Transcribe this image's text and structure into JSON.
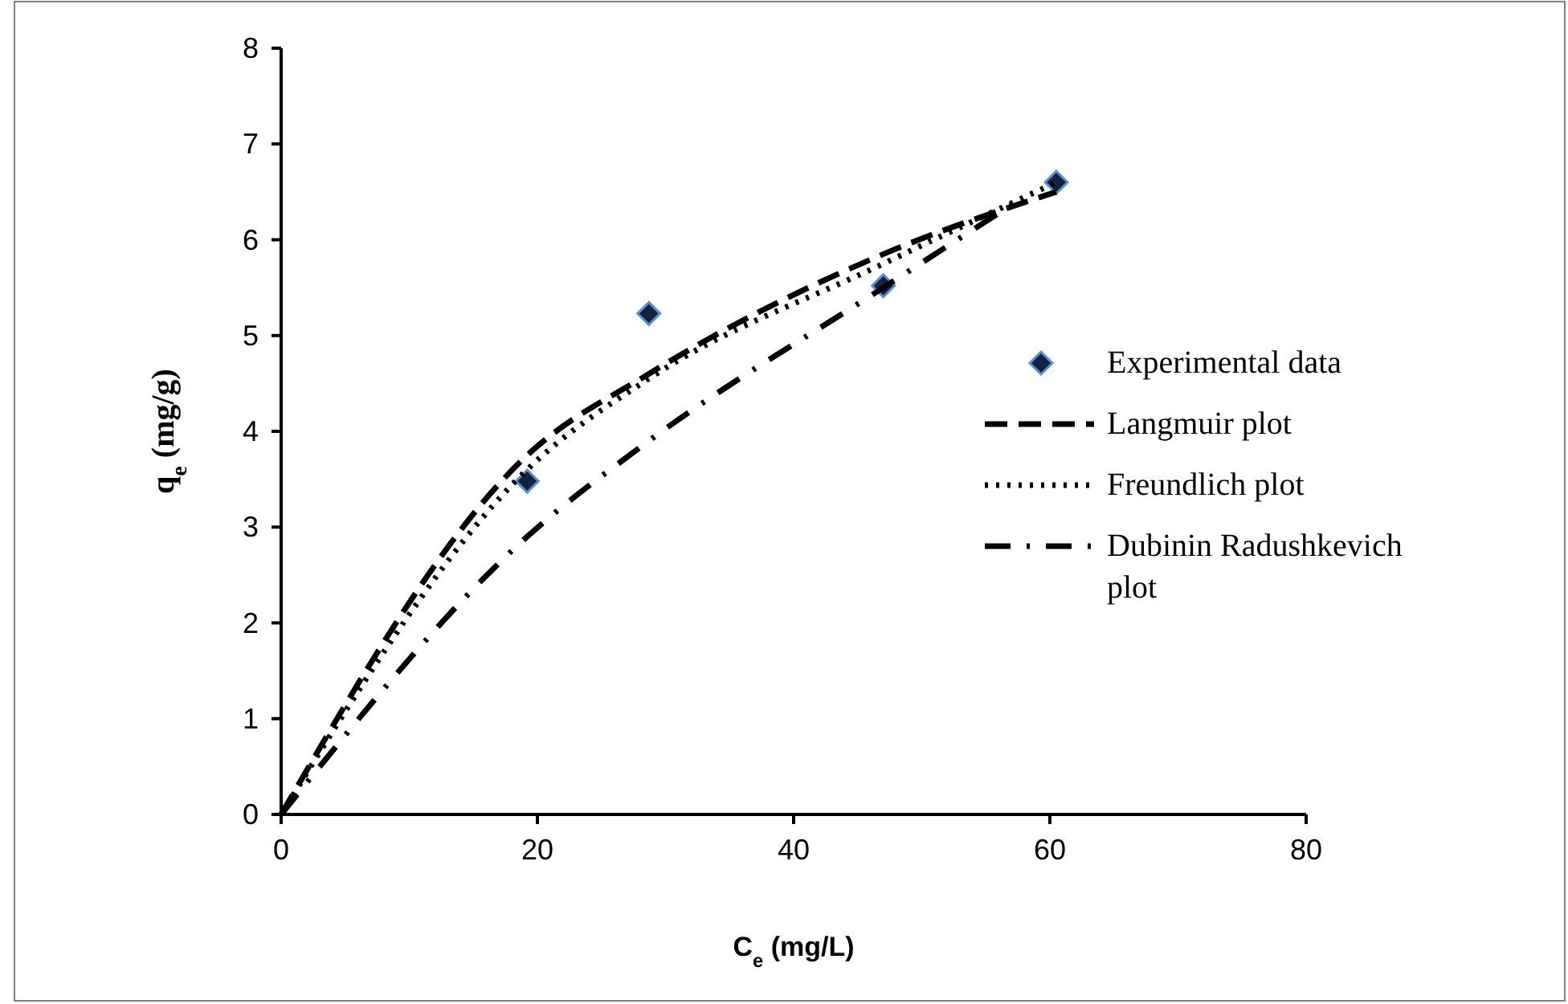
{
  "chart_data": {
    "type": "scatter",
    "xlabel": "C$_{e}$ (mg/L)",
    "ylabel": "q$_{e}$ (mg/g)",
    "xlim": [
      0,
      80
    ],
    "ylim": [
      0,
      8
    ],
    "xticks": [
      0,
      20,
      40,
      60,
      80
    ],
    "yticks": [
      0,
      1,
      2,
      3,
      4,
      5,
      6,
      7,
      8
    ],
    "grid": false,
    "legend": "right",
    "series": [
      {
        "name": "Experimental data",
        "marker": "diamond",
        "color": "#10233f",
        "x": [
          19.2,
          28.7,
          47,
          60.5
        ],
        "values": [
          3.48,
          5.23,
          5.52,
          6.6
        ]
      },
      {
        "name": "Langmuir plot",
        "type": "line",
        "line_style": "dashed",
        "marker": "none",
        "color": "#000000",
        "x": [
          0,
          19.2,
          28.7,
          47,
          60.5
        ],
        "values": [
          0,
          3.75,
          4.6,
          5.85,
          6.5
        ]
      },
      {
        "name": "Freundlich plot",
        "type": "line",
        "line_style": "dotted",
        "marker": "none",
        "color": "#000000",
        "x": [
          0,
          19.2,
          28.7,
          47,
          60.5
        ],
        "values": [
          0,
          3.6,
          4.55,
          5.75,
          6.6
        ]
      },
      {
        "name": "Dubinin Radushkevich plot",
        "type": "line",
        "line_style": "dashdot",
        "marker": "none",
        "color": "#000000",
        "x": [
          0,
          19.2,
          28.7,
          47,
          58
        ],
        "values": [
          0,
          2.9,
          3.9,
          5.5,
          6.45
        ]
      }
    ]
  }
}
